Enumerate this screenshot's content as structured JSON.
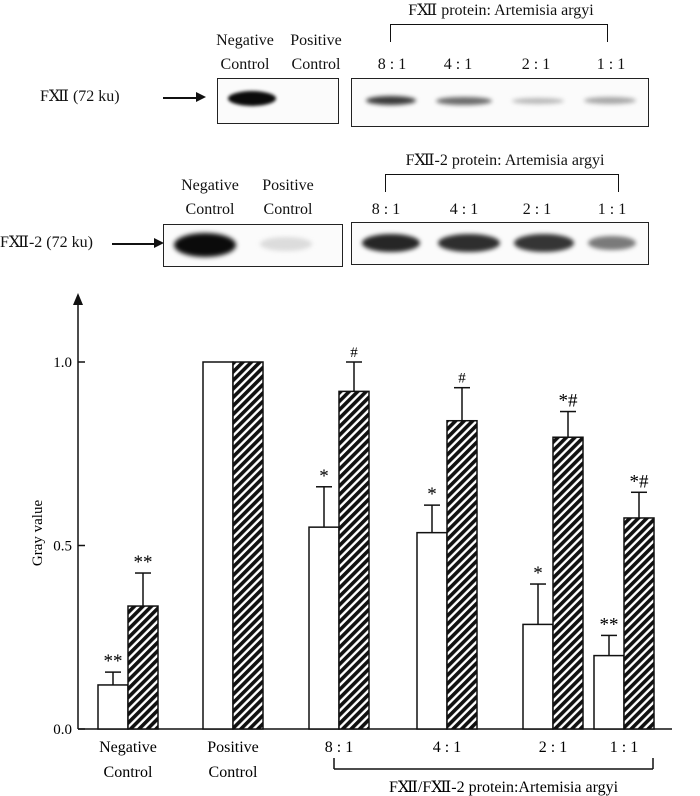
{
  "blot1": {
    "header": "FⅫ protein: Artemisia argyi",
    "ratios": [
      "8 : 1",
      "4 : 1",
      "2 : 1",
      "1 : 1"
    ],
    "neg_label_1": "Negative",
    "neg_label_2": "Control",
    "pos_label_1": "Positive",
    "pos_label_2": "Control",
    "row_label": "FⅫ (72 ku)"
  },
  "blot2": {
    "header": "FⅫ-2 protein: Artemisia argyi",
    "ratios": [
      "8 : 1",
      "4 : 1",
      "2 : 1",
      "1 : 1"
    ],
    "neg_label_1": "Negative",
    "neg_label_2": "Control",
    "pos_label_1": "Positive",
    "pos_label_2": "Control",
    "row_label": "FⅫ-2 (72 ku)"
  },
  "chart_data": {
    "type": "bar",
    "ylabel": "Gray value",
    "ylim": [
      0,
      1.2
    ],
    "yticks": [
      0.0,
      0.5,
      1.0
    ],
    "ytick_labels": [
      "0.0",
      "0.5",
      "1.0"
    ],
    "categories": [
      [
        "Negative",
        "Control"
      ],
      [
        "Positive",
        "Control"
      ],
      [
        "8 : 1"
      ],
      [
        "4 : 1"
      ],
      [
        "2 : 1"
      ],
      [
        "1 : 1"
      ]
    ],
    "series": [
      {
        "name": "FⅫ",
        "pattern": "open",
        "values": [
          0.12,
          1.0,
          0.55,
          0.535,
          0.285,
          0.2
        ],
        "errors": [
          0.035,
          0,
          0.11,
          0.075,
          0.11,
          0.055
        ],
        "annotations": [
          "**",
          "",
          "*",
          "*",
          "*",
          "**"
        ]
      },
      {
        "name": "FⅫ-2",
        "pattern": "hatched",
        "values": [
          0.335,
          1.0,
          0.92,
          0.84,
          0.795,
          0.575
        ],
        "errors": [
          0.09,
          0,
          0.08,
          0.09,
          0.07,
          0.07
        ],
        "annotations": [
          "**",
          "",
          "#",
          "#",
          "*#",
          "*#"
        ]
      }
    ],
    "group_caption": "FⅫ/FⅫ-2 protein:Artemisia argyi"
  }
}
